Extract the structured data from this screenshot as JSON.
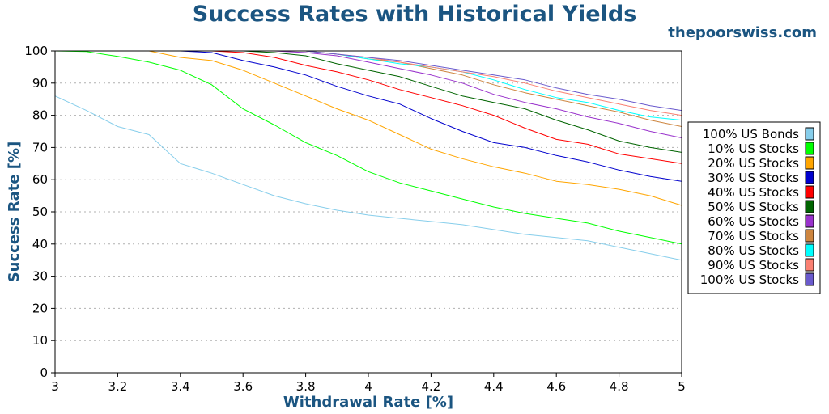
{
  "chart_data": {
    "type": "line",
    "title": "Success Rates with Historical Yields",
    "watermark": "thepoorswiss.com",
    "xlabel": "Withdrawal Rate [%]",
    "ylabel": "Success Rate [%]",
    "xlim": [
      3,
      5
    ],
    "ylim": [
      0,
      100
    ],
    "xticks": [
      "3",
      "3.2",
      "3.4",
      "3.6",
      "3.8",
      "4",
      "4.2",
      "4.4",
      "4.6",
      "4.8",
      "5"
    ],
    "yticks": [
      "0",
      "10",
      "20",
      "30",
      "40",
      "50",
      "60",
      "70",
      "80",
      "90",
      "100"
    ],
    "grid": "horizontal dotted",
    "legend_position": "right",
    "x": [
      3.0,
      3.1,
      3.2,
      3.3,
      3.4,
      3.5,
      3.6,
      3.7,
      3.8,
      3.9,
      4.0,
      4.1,
      4.2,
      4.3,
      4.4,
      4.5,
      4.6,
      4.7,
      4.8,
      4.9,
      5.0
    ],
    "series": [
      {
        "name": "100% US Bonds",
        "color": "#87ceeb",
        "values": [
          86,
          81.5,
          76.5,
          74,
          65,
          62,
          58.5,
          55,
          52.5,
          50.5,
          49,
          48,
          47,
          46,
          44.5,
          43,
          42,
          41,
          39,
          37,
          35
        ]
      },
      {
        "name": "10% US Stocks",
        "color": "#00ff00",
        "values": [
          100,
          99.8,
          98.3,
          96.5,
          94,
          89.5,
          82,
          77,
          71.5,
          67.5,
          62.5,
          59,
          56.5,
          54,
          51.5,
          49.5,
          48,
          46.5,
          44,
          42,
          40
        ]
      },
      {
        "name": "20% US Stocks",
        "color": "#ffa500",
        "values": [
          100,
          100,
          100,
          100,
          98,
          97,
          94,
          90,
          86,
          82,
          78.5,
          74,
          69.5,
          66.5,
          64,
          62,
          59.5,
          58.5,
          57,
          55,
          52
        ]
      },
      {
        "name": "30% US Stocks",
        "color": "#0000cd",
        "values": [
          100,
          100,
          100,
          100,
          100,
          99.5,
          97,
          95,
          92.5,
          89,
          86,
          83.5,
          79,
          75,
          71.5,
          70,
          67.5,
          65.5,
          63,
          61,
          59.5
        ]
      },
      {
        "name": "40% US Stocks",
        "color": "#ff0000",
        "values": [
          100,
          100,
          100,
          100,
          100,
          100,
          99.5,
          98,
          95.5,
          93.5,
          91,
          88,
          85.5,
          83,
          80,
          76,
          72.5,
          71,
          68,
          66.5,
          65
        ]
      },
      {
        "name": "50% US Stocks",
        "color": "#006400",
        "values": [
          100,
          100,
          100,
          100,
          100,
          100,
          100,
          99.5,
          98.5,
          96,
          94,
          92,
          89,
          86,
          84,
          82,
          78.5,
          75.5,
          72,
          70,
          68.5
        ]
      },
      {
        "name": "60% US Stocks",
        "color": "#9932cc",
        "values": [
          100,
          100,
          100,
          100,
          100,
          100,
          100,
          100,
          99.5,
          98.5,
          96.5,
          94.5,
          92.5,
          90,
          86.5,
          84,
          82,
          79.5,
          77.5,
          75,
          73
        ]
      },
      {
        "name": "70% US Stocks",
        "color": "#cd853f",
        "values": [
          100,
          100,
          100,
          100,
          100,
          100,
          100,
          100,
          100,
          99,
          97.5,
          96.5,
          94.5,
          92.5,
          89.5,
          87,
          85,
          83,
          81,
          78.5,
          76.5
        ]
      },
      {
        "name": "80% US Stocks",
        "color": "#00ffff",
        "values": [
          100,
          100,
          100,
          100,
          100,
          100,
          100,
          100,
          100,
          99,
          97.5,
          96,
          95,
          93.5,
          91,
          88,
          85.5,
          84,
          81.5,
          79.5,
          78.5
        ]
      },
      {
        "name": "90% US Stocks",
        "color": "#fa8072",
        "values": [
          100,
          100,
          100,
          100,
          100,
          100,
          100,
          100,
          100,
          99,
          98,
          96.5,
          95,
          93.5,
          92,
          90,
          87.5,
          85.5,
          83.5,
          81.5,
          80
        ]
      },
      {
        "name": "100% US Stocks",
        "color": "#6a5acd",
        "values": [
          100,
          100,
          100,
          100,
          100,
          100,
          100,
          100,
          100,
          99,
          98,
          97,
          95.5,
          94,
          92.5,
          91,
          88.5,
          86.5,
          85,
          83,
          81.5
        ]
      }
    ]
  }
}
